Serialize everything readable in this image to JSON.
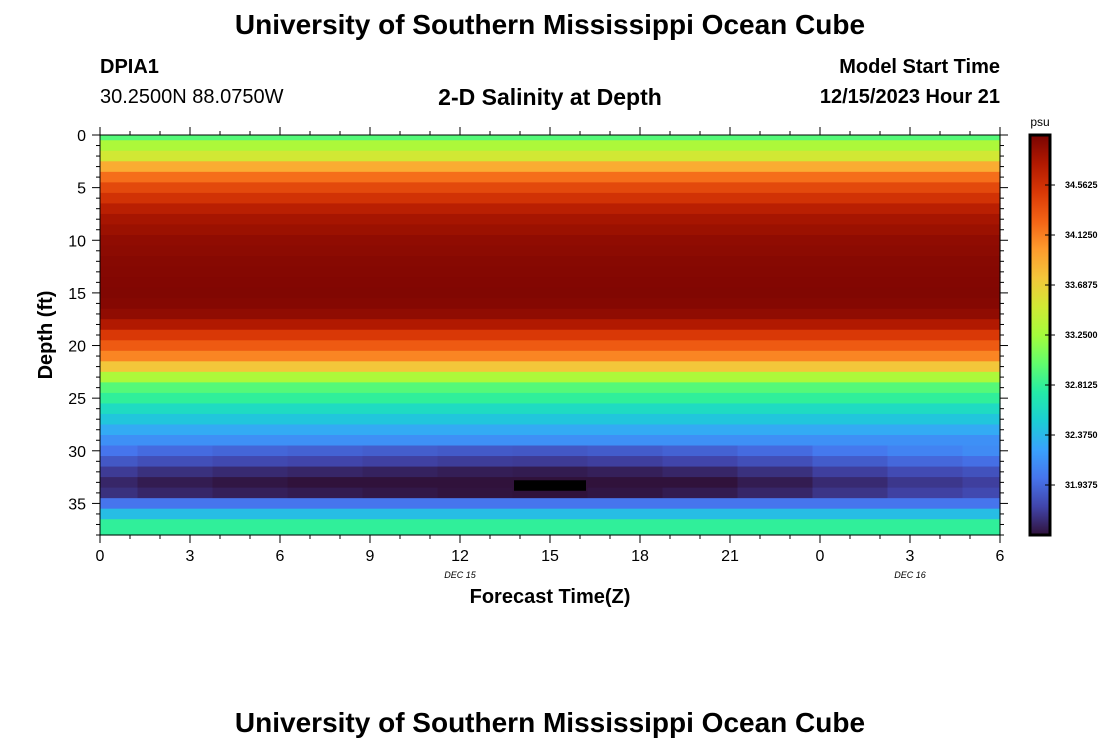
{
  "header": {
    "title": "University of Southern Mississippi Ocean Cube",
    "station_id": "DPIA1",
    "station_coords": "30.2500N  88.0750W",
    "chart_title": "2-D Salinity at Depth",
    "model_start_label": "Model Start Time",
    "model_start_value": "12/15/2023 Hour 21"
  },
  "footer": {
    "title": "University of Southern Mississippi Ocean Cube"
  },
  "chart_data": {
    "type": "heatmap",
    "title": "2-D Salinity at Depth",
    "xlabel": "Forecast Time(Z)",
    "ylabel": "Depth (ft)",
    "x_range_hours": [
      0,
      30
    ],
    "y_range": [
      0,
      38
    ],
    "y_inverted": true,
    "x_ticks": [
      {
        "hour": 0,
        "label": "0"
      },
      {
        "hour": 3,
        "label": "3"
      },
      {
        "hour": 6,
        "label": "6"
      },
      {
        "hour": 9,
        "label": "9"
      },
      {
        "hour": 12,
        "label": "12"
      },
      {
        "hour": 15,
        "label": "15"
      },
      {
        "hour": 18,
        "label": "18"
      },
      {
        "hour": 21,
        "label": "21"
      },
      {
        "hour": 24,
        "label": "0"
      },
      {
        "hour": 27,
        "label": "3"
      },
      {
        "hour": 30,
        "label": "6"
      }
    ],
    "date_labels": [
      {
        "hour": 12,
        "label": "DEC 15"
      },
      {
        "hour": 27,
        "label": "DEC 16"
      }
    ],
    "y_ticks": [
      0,
      5,
      10,
      15,
      20,
      25,
      30,
      35
    ],
    "colorbar": {
      "unit": "psu",
      "min": 31.5,
      "max": 35.0,
      "tick_values": [
        34.5625,
        34.125,
        33.6875,
        33.25,
        32.8125,
        32.375,
        31.9375
      ],
      "tick_labels": [
        "34.5625",
        "34.1250",
        "33.6875",
        "33.2500",
        "32.8125",
        "32.3750",
        "31.9375"
      ],
      "colors": [
        "#30123b",
        "#4145ab",
        "#4675ed",
        "#39a2fc",
        "#1bcfd4",
        "#24eca6",
        "#61fc6c",
        "#a4fc3b",
        "#d1e834",
        "#f3c63a",
        "#fe9b2d",
        "#f36315",
        "#d93806",
        "#b11901",
        "#7a0402"
      ]
    },
    "profile": {
      "depth": [
        0,
        1,
        2,
        3,
        4,
        5,
        6,
        7,
        8,
        9,
        10,
        11,
        12,
        13,
        14,
        15,
        16,
        17,
        18,
        19,
        20,
        21,
        22,
        23,
        24,
        25,
        26,
        27,
        28,
        29,
        30,
        31,
        32,
        33,
        34,
        35,
        36,
        37
      ],
      "salinity": [
        32.95,
        33.3,
        33.5,
        33.9,
        34.2,
        34.4,
        34.55,
        34.7,
        34.8,
        34.85,
        34.9,
        34.92,
        34.94,
        34.95,
        34.96,
        34.97,
        34.95,
        34.9,
        34.75,
        34.5,
        34.3,
        34.1,
        33.75,
        33.3,
        32.95,
        32.8,
        32.6,
        32.45,
        32.3,
        32.15,
        32.0,
        31.85,
        31.7,
        31.6,
        31.65,
        32.0,
        32.4,
        32.8
      ]
    },
    "time_columns_hours": [
      0,
      2.5,
      5,
      7.5,
      10,
      12.5,
      15,
      17.5,
      20,
      22.5,
      25,
      27.5,
      30
    ],
    "time_offsets": [
      0.0,
      -0.05,
      -0.08,
      -0.1,
      -0.12,
      -0.14,
      -0.15,
      -0.13,
      -0.1,
      -0.05,
      0.02,
      0.08,
      0.12
    ],
    "masked_cell": {
      "hour_start": 13.8,
      "hour_end": 16.2,
      "depth_start": 32.8,
      "depth_end": 33.8
    }
  }
}
